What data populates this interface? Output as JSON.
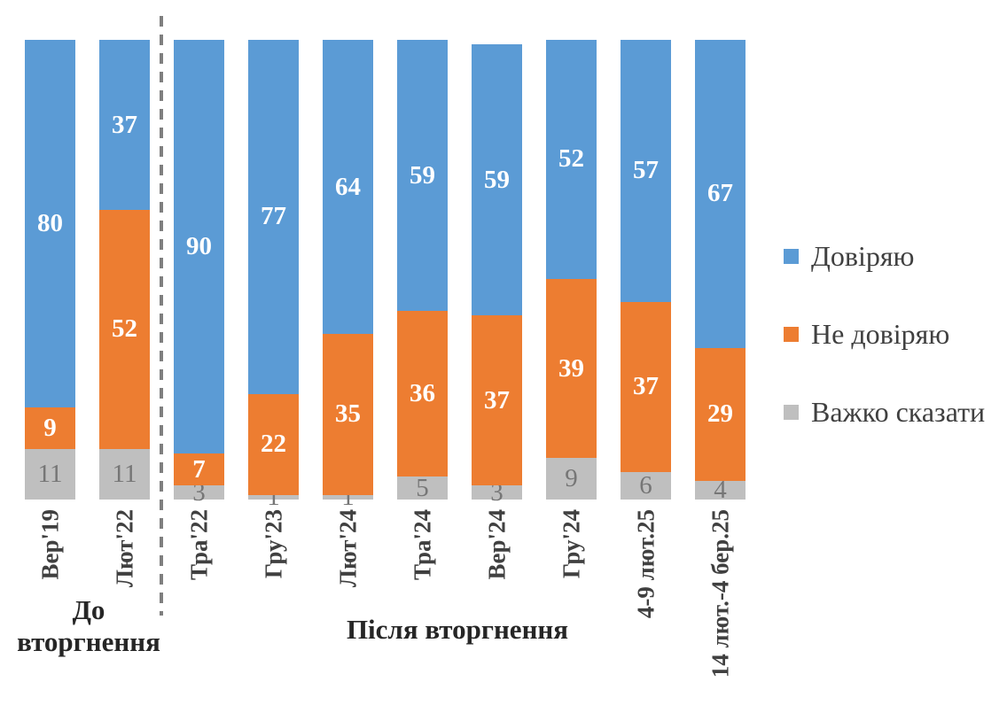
{
  "chart_data": {
    "type": "bar",
    "stacked": true,
    "orientation": "vertical",
    "title": "",
    "xlabel": "",
    "ylabel": "",
    "ylim": [
      0,
      100
    ],
    "grid": false,
    "legend_position": "right",
    "value_labels": "inside-center",
    "categories": [
      "Вер'19",
      "Лют'22",
      "Тра'22",
      "Гру'23",
      "Лют'24",
      "Тра'24",
      "Вер'24",
      "Гру'24",
      "4-9 лют.25",
      "14 лют.-4 бер.25"
    ],
    "series": [
      {
        "key": "trust",
        "name": "Довіряю",
        "color": "#5B9BD5",
        "label_color": "#FFFFFF",
        "values": [
          80,
          37,
          90,
          77,
          64,
          59,
          59,
          52,
          57,
          67
        ]
      },
      {
        "key": "distrust",
        "name": "Не довіряю",
        "color": "#ED7D31",
        "label_color": "#FFFFFF",
        "values": [
          9,
          52,
          7,
          22,
          35,
          36,
          37,
          39,
          37,
          29
        ]
      },
      {
        "key": "hard-to-say",
        "name": "Важко сказати",
        "color": "#BFBFBF",
        "label_color": "#767676",
        "values": [
          11,
          11,
          3,
          1,
          1,
          5,
          3,
          9,
          6,
          4
        ]
      }
    ],
    "stack_order_bottom_to_top": [
      "hard-to-say",
      "distrust",
      "trust"
    ],
    "groups": [
      {
        "label": "До вторгнення",
        "from_index": 0,
        "to_index": 1
      },
      {
        "label": "Після вторгнення",
        "from_index": 2,
        "to_index": 9
      }
    ],
    "divider_after_index": 1,
    "divider_style": "dashed",
    "divider_color": "#7F7F7F",
    "axis_label_color": "#404040",
    "group_label_color": "#262626"
  }
}
